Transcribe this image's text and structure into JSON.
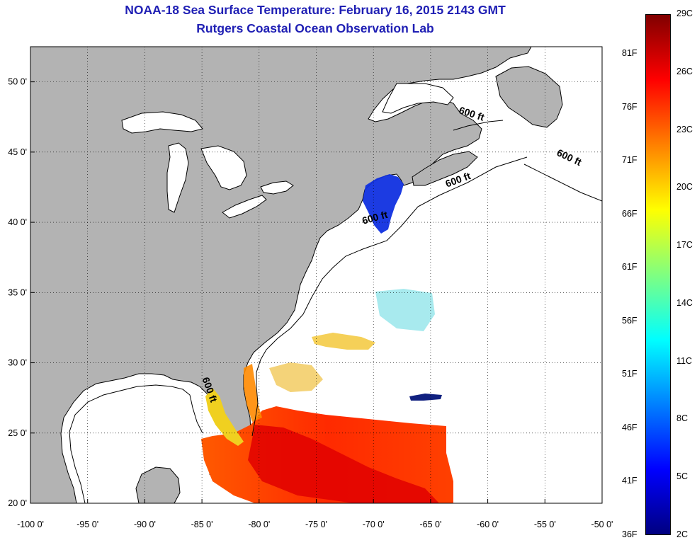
{
  "title": "NOAA-18 Sea Surface Temperature:  February 16, 2015 2143 GMT",
  "subtitle": "Rutgers Coastal Ocean Observation Lab",
  "map": {
    "lon_range": [
      -100,
      -50
    ],
    "lat_range": [
      20,
      52.5
    ],
    "x_ticks": [
      {
        "value": -100,
        "label": "-100 0'"
      },
      {
        "value": -95,
        "label": "-95 0'"
      },
      {
        "value": -90,
        "label": "-90 0'"
      },
      {
        "value": -85,
        "label": "-85 0'"
      },
      {
        "value": -80,
        "label": "-80 0'"
      },
      {
        "value": -75,
        "label": "-75 0'"
      },
      {
        "value": -70,
        "label": "-70 0'"
      },
      {
        "value": -65,
        "label": "-65 0'"
      },
      {
        "value": -60,
        "label": "-60 0'"
      },
      {
        "value": -55,
        "label": "-55 0'"
      },
      {
        "value": -50,
        "label": "-50 0'"
      }
    ],
    "y_ticks": [
      {
        "value": 20,
        "label": "20 0'"
      },
      {
        "value": 25,
        "label": "25 0'"
      },
      {
        "value": 30,
        "label": "30 0'"
      },
      {
        "value": 35,
        "label": "35 0'"
      },
      {
        "value": 40,
        "label": "40 0'"
      },
      {
        "value": 45,
        "label": "45 0'"
      },
      {
        "value": 50,
        "label": "50 0'"
      }
    ],
    "grid": "dotted",
    "land_color": "#b3b3b3",
    "water_color": "#ffffff",
    "contour_labels": [
      {
        "text": "600 ft",
        "lon": -61.5,
        "lat": 47.5,
        "angle": 18
      },
      {
        "text": "600 ft",
        "lon": -53.0,
        "lat": 44.4,
        "angle": 25
      },
      {
        "text": "600 ft",
        "lon": -62.5,
        "lat": 42.8,
        "angle": -20
      },
      {
        "text": "600 ft",
        "lon": -69.8,
        "lat": 40.1,
        "angle": -15
      },
      {
        "text": "600 ft",
        "lon": -84.6,
        "lat": 28.0,
        "angle": 70
      }
    ]
  },
  "colorbar": {
    "celsius_labels": [
      "29C",
      "26C",
      "23C",
      "20C",
      "17C",
      "14C",
      "11C",
      "8C",
      "5C",
      "2C"
    ],
    "fahrenheit_labels": [
      "81F",
      "76F",
      "71F",
      "66F",
      "61F",
      "56F",
      "51F",
      "46F",
      "41F",
      "36F"
    ],
    "colors": [
      "#800000",
      "#ff0000",
      "#ff8000",
      "#ffff00",
      "#80ff80",
      "#00ffff",
      "#0080ff",
      "#0000ff",
      "#000080"
    ]
  }
}
